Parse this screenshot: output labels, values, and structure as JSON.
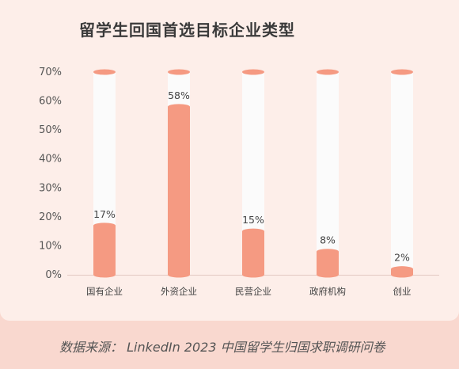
{
  "chart_data": {
    "type": "bar",
    "title": "留学生回国首选目标企业类型",
    "categories": [
      "国有企业",
      "外资企业",
      "民营企业",
      "政府机构",
      "创业"
    ],
    "values": [
      17,
      58,
      15,
      8,
      2
    ],
    "value_labels": [
      "17%",
      "58%",
      "15%",
      "8%",
      "2%"
    ],
    "ylim": [
      0,
      70
    ],
    "y_ticks": [
      "0%",
      "10%",
      "20%",
      "30%",
      "40%",
      "50%",
      "60%",
      "70%"
    ],
    "grid": false,
    "colors": {
      "bar_fill": "#f59a82",
      "cylinder": "#fbfbfb",
      "background": "#fdeee9",
      "outer_background": "#f9d8cf"
    }
  },
  "source": "数据来源： LinkedIn 2023 中国留学生归国求职调研问卷"
}
